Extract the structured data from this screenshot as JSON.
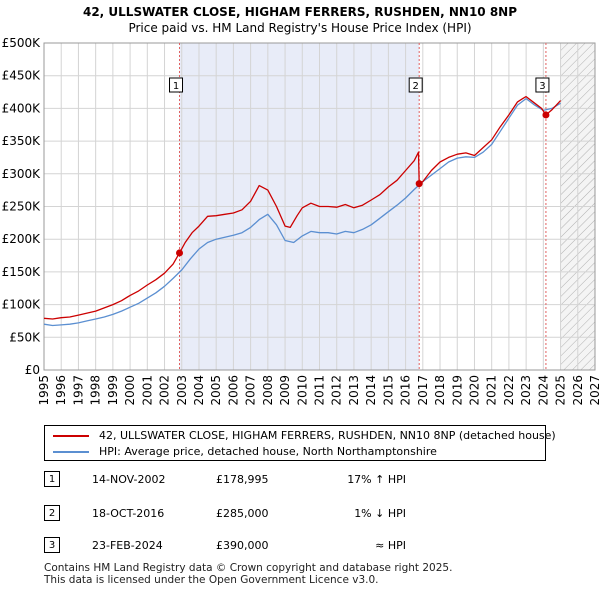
{
  "chart_data": {
    "type": "line",
    "title": "42, ULLSWATER CLOSE, HIGHAM FERRERS, RUSHDEN, NN10 8NP",
    "subtitle": "Price paid vs. HM Land Registry's House Price Index (HPI)",
    "xlim": [
      1995,
      2027
    ],
    "ylim": [
      0,
      500000
    ],
    "x_ticks": [
      1995,
      1996,
      1997,
      1998,
      1999,
      2000,
      2001,
      2002,
      2003,
      2004,
      2005,
      2006,
      2007,
      2008,
      2009,
      2010,
      2011,
      2012,
      2013,
      2014,
      2015,
      2016,
      2017,
      2018,
      2019,
      2020,
      2021,
      2022,
      2023,
      2024,
      2025,
      2026,
      2027
    ],
    "y_ticks": [
      {
        "value": 0,
        "label": "£0"
      },
      {
        "value": 50000,
        "label": "£50K"
      },
      {
        "value": 100000,
        "label": "£100K"
      },
      {
        "value": 150000,
        "label": "£150K"
      },
      {
        "value": 200000,
        "label": "£200K"
      },
      {
        "value": 250000,
        "label": "£250K"
      },
      {
        "value": 300000,
        "label": "£300K"
      },
      {
        "value": 350000,
        "label": "£350K"
      },
      {
        "value": 400000,
        "label": "£400K"
      },
      {
        "value": 450000,
        "label": "£450K"
      },
      {
        "value": 500000,
        "label": "£500K"
      }
    ],
    "ownership_shading": [
      [
        2002.87,
        2016.79
      ]
    ],
    "future_from": 2025.0,
    "series": [
      {
        "name": "42, ULLSWATER CLOSE, HIGHAM FERRERS, RUSHDEN, NN10 8NP (detached house)",
        "color": "#cc0000",
        "x": [
          1995.0,
          1995.5,
          1996.0,
          1996.5,
          1997.0,
          1997.5,
          1998.0,
          1998.5,
          1999.0,
          1999.5,
          2000.0,
          2000.5,
          2001.0,
          2001.5,
          2002.0,
          2002.5,
          2002.87,
          2003.2,
          2003.6,
          2004.0,
          2004.5,
          2005.0,
          2005.5,
          2006.0,
          2006.5,
          2007.0,
          2007.5,
          2008.0,
          2008.5,
          2009.0,
          2009.3,
          2009.7,
          2010.0,
          2010.5,
          2011.0,
          2011.5,
          2012.0,
          2012.5,
          2013.0,
          2013.5,
          2014.0,
          2014.5,
          2015.0,
          2015.5,
          2016.0,
          2016.5,
          2016.75,
          2016.79,
          2017.0,
          2017.5,
          2018.0,
          2018.5,
          2019.0,
          2019.5,
          2020.0,
          2020.5,
          2021.0,
          2021.5,
          2022.0,
          2022.5,
          2022.8,
          2023.0,
          2023.5,
          2023.9,
          2024.15,
          2024.5,
          2025.0
        ],
        "y": [
          79000,
          78000,
          80000,
          81000,
          84000,
          87000,
          90000,
          95000,
          100000,
          106000,
          114000,
          121000,
          130000,
          138000,
          148000,
          162000,
          178995,
          195000,
          210000,
          220000,
          235000,
          236000,
          238000,
          240000,
          245000,
          258000,
          282000,
          275000,
          250000,
          220000,
          218000,
          236000,
          248000,
          255000,
          250000,
          250000,
          249000,
          253000,
          248000,
          252000,
          260000,
          268000,
          280000,
          290000,
          305000,
          320000,
          333000,
          285000,
          288000,
          305000,
          318000,
          325000,
          330000,
          332000,
          328000,
          340000,
          352000,
          372000,
          390000,
          410000,
          415000,
          418000,
          408000,
          400000,
          390000,
          398000,
          412000
        ]
      },
      {
        "name": "HPI: Average price, detached house, North Northamptonshire",
        "color": "#5b8fd1",
        "x": [
          1995.0,
          1995.5,
          1996.0,
          1996.5,
          1997.0,
          1997.5,
          1998.0,
          1998.5,
          1999.0,
          1999.5,
          2000.0,
          2000.5,
          2001.0,
          2001.5,
          2002.0,
          2002.5,
          2003.0,
          2003.5,
          2004.0,
          2004.5,
          2005.0,
          2005.5,
          2006.0,
          2006.5,
          2007.0,
          2007.5,
          2008.0,
          2008.5,
          2009.0,
          2009.5,
          2010.0,
          2010.5,
          2011.0,
          2011.5,
          2012.0,
          2012.5,
          2013.0,
          2013.5,
          2014.0,
          2014.5,
          2015.0,
          2015.5,
          2016.0,
          2016.5,
          2017.0,
          2017.5,
          2018.0,
          2018.5,
          2019.0,
          2019.5,
          2020.0,
          2020.5,
          2021.0,
          2021.5,
          2022.0,
          2022.5,
          2023.0,
          2023.5,
          2024.0,
          2024.5,
          2025.0
        ],
        "y": [
          70000,
          68000,
          69000,
          70000,
          72000,
          75000,
          78000,
          81000,
          85000,
          90000,
          96000,
          102000,
          110000,
          118000,
          128000,
          140000,
          153000,
          170000,
          185000,
          195000,
          200000,
          203000,
          206000,
          210000,
          218000,
          230000,
          238000,
          222000,
          198000,
          195000,
          205000,
          212000,
          210000,
          210000,
          208000,
          212000,
          210000,
          215000,
          222000,
          232000,
          242000,
          252000,
          263000,
          276000,
          288000,
          298000,
          308000,
          318000,
          324000,
          326000,
          325000,
          333000,
          345000,
          365000,
          385000,
          405000,
          415000,
          405000,
          397000,
          400000,
          408000
        ]
      }
    ],
    "markers": [
      {
        "id": "1",
        "x": 2002.87,
        "y": 178995
      },
      {
        "id": "2",
        "x": 2016.79,
        "y": 285000
      },
      {
        "id": "3",
        "x": 2024.15,
        "y": 390000
      }
    ]
  },
  "legend": {
    "property_label": "42, ULLSWATER CLOSE, HIGHAM FERRERS, RUSHDEN, NN10 8NP (detached house)",
    "hpi_label": "HPI: Average price, detached house, North Northamptonshire"
  },
  "transactions": [
    {
      "id": "1",
      "date": "14-NOV-2002",
      "price": "£178,995",
      "relation": "17% ↑ HPI"
    },
    {
      "id": "2",
      "date": "18-OCT-2016",
      "price": "£285,000",
      "relation": "1% ↓ HPI"
    },
    {
      "id": "3",
      "date": "23-FEB-2024",
      "price": "£390,000",
      "relation": "≈ HPI"
    }
  ],
  "footer": {
    "line1": "Contains HM Land Registry data © Crown copyright and database right 2025.",
    "line2": "This data is licensed under the Open Government Licence v3.0."
  },
  "colors": {
    "property": "#cc0000",
    "hpi": "#5b8fd1",
    "shading": "#e8ecf8",
    "grid": "#d4d4d4",
    "marker_line": "#e06060"
  }
}
